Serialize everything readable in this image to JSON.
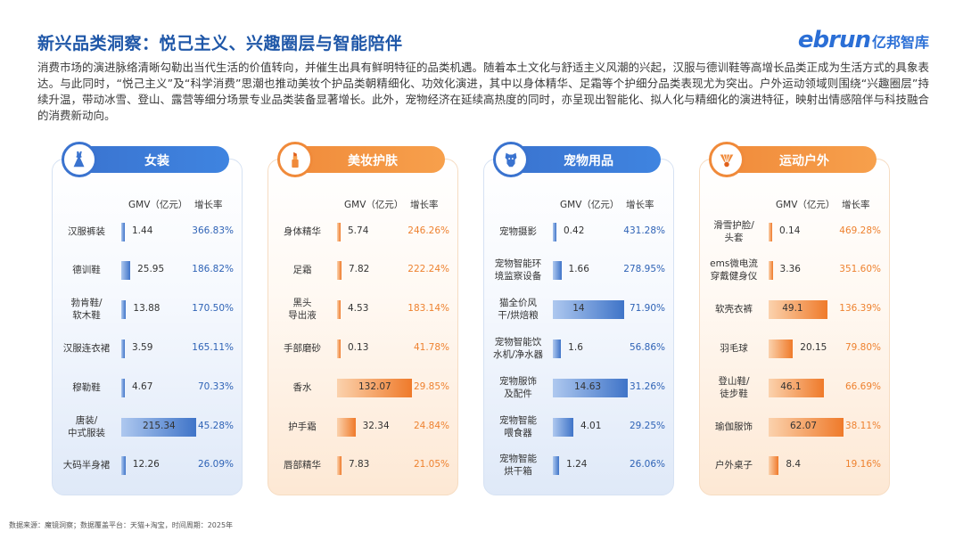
{
  "page": {
    "title": "新兴品类洞察：悦己主义、兴趣圈层与智能陪伴",
    "logo_en": "ebrun",
    "logo_cn": "亿邦智库",
    "intro": "消费市场的演进脉络清晰勾勒出当代生活的价值转向，并催生出具有鲜明特征的品类机遇。随着本土文化与舒适主义风潮的兴起，汉服与德训鞋等高增长品类正成为生活方式的具象表达。与此同时，“悦己主义”及“科学消费”思潮也推动美妆个护品类朝精细化、功效化演进，其中以身体精华、足霜等个护细分品类表现尤为突出。户外运动领域则围绕“兴趣圈层”持续升温，带动冰雪、登山、露营等细分场景专业品类装备显著增长。此外，宠物经济在延续高热度的同时，亦呈现出智能化、拟人化与精细化的演进特征，映射出情感陪伴与科技融合的消费新动向。",
    "footer": "数据来源：魔镜洞察；数据覆盖平台：天猫+淘宝，时间周期：2025年"
  },
  "chart_data": [
    {
      "type": "bar",
      "title": "女装",
      "icon": "dress-icon",
      "color": "#3f74c8",
      "xlabel": "GMV（亿元）",
      "ylabel": "增长率",
      "categories": [
        "汉服裤装",
        "德训鞋",
        "勃肯鞋/\n软木鞋",
        "汉服连衣裙",
        "穆勒鞋",
        "唐装/\n中式服装",
        "大码半身裙"
      ],
      "values": [
        1.44,
        25.95,
        13.88,
        3.59,
        4.67,
        215.34,
        12.26
      ],
      "value_labels": [
        "1.44",
        "25.95",
        "13.88",
        "3.59",
        "4.67",
        "215.34",
        "12.26"
      ],
      "growth": [
        "366.83%",
        "186.82%",
        "170.50%",
        "165.11%",
        "70.33%",
        "45.28%",
        "26.09%"
      ]
    },
    {
      "type": "bar",
      "title": "美妆护肤",
      "icon": "lipstick-icon",
      "color": "#ef7a2a",
      "xlabel": "GMV（亿元）",
      "ylabel": "增长率",
      "categories": [
        "身体精华",
        "足霜",
        "黑头\n导出液",
        "手部磨砂",
        "香水",
        "护手霜",
        "唇部精华"
      ],
      "values": [
        5.74,
        7.82,
        4.53,
        0.13,
        132.07,
        32.34,
        7.83
      ],
      "value_labels": [
        "5.74",
        "7.82",
        "4.53",
        "0.13",
        "132.07",
        "32.34",
        "7.83"
      ],
      "growth": [
        "246.26%",
        "222.24%",
        "183.14%",
        "41.78%",
        "29.85%",
        "24.84%",
        "21.05%"
      ]
    },
    {
      "type": "bar",
      "title": "宠物用品",
      "icon": "dog-icon",
      "color": "#3f74c8",
      "xlabel": "GMV（亿元）",
      "ylabel": "增长率",
      "categories": [
        "宠物摄影",
        "宠物智能环\n境监察设备",
        "猫全价风\n干/烘焙粮",
        "宠物智能饮\n水机/净水器",
        "宠物服饰\n及配件",
        "宠物智能\n喂食器",
        "宠物智能\n烘干箱"
      ],
      "values": [
        0.42,
        1.66,
        14,
        1.6,
        14.63,
        4.01,
        1.24
      ],
      "value_labels": [
        "0.42",
        "1.66",
        "14",
        "1.6",
        "14.63",
        "4.01",
        "1.24"
      ],
      "growth": [
        "431.28%",
        "278.95%",
        "71.90%",
        "56.86%",
        "31.26%",
        "29.25%",
        "26.06%"
      ]
    },
    {
      "type": "bar",
      "title": "运动户外",
      "icon": "shuttlecock-icon",
      "color": "#ef7a2a",
      "xlabel": "GMV（亿元）",
      "ylabel": "增长率",
      "categories": [
        "滑雪护脸/\n头套",
        "ems微电流\n穿戴健身仪",
        "软壳衣裤",
        "羽毛球",
        "登山鞋/\n徒步鞋",
        "瑜伽服饰",
        "户外桌子"
      ],
      "values": [
        0.14,
        3.36,
        49.1,
        20.15,
        46.1,
        62.07,
        8.4
      ],
      "value_labels": [
        "0.14",
        "3.36",
        "49.1",
        "20.15",
        "46.1",
        "62.07",
        "8.4"
      ],
      "growth": [
        "469.28%",
        "351.60%",
        "136.39%",
        "79.80%",
        "66.69%",
        "38.11%",
        "19.16%"
      ]
    }
  ]
}
